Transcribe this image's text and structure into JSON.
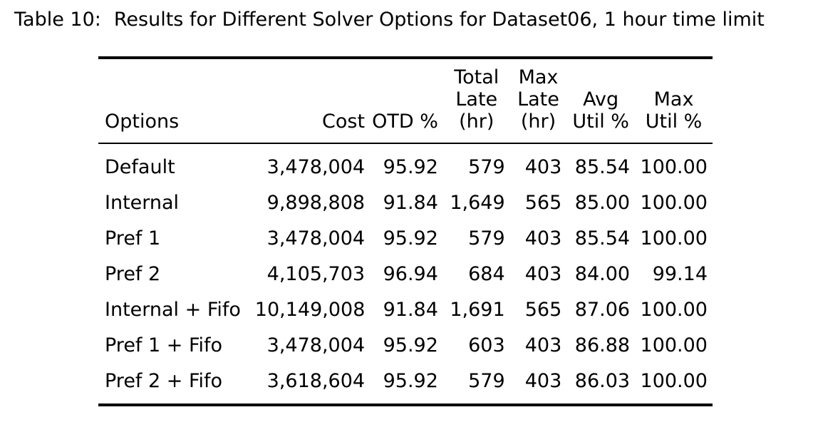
{
  "caption": {
    "label": "Table 10:",
    "text": "Results for Different Solver Options for Dataset06, 1 hour time limit"
  },
  "table": {
    "headers": [
      [
        "Options"
      ],
      [
        "Cost"
      ],
      [
        "OTD %"
      ],
      [
        "Total",
        "Late",
        "(hr)"
      ],
      [
        "Max",
        "Late",
        "(hr)"
      ],
      [
        "Avg",
        "Util %"
      ],
      [
        "Max",
        "Util %"
      ]
    ],
    "rows": [
      [
        "Default",
        "3,478,004",
        "95.92",
        "579",
        "403",
        "85.54",
        "100.00"
      ],
      [
        "Internal",
        "9,898,808",
        "91.84",
        "1,649",
        "565",
        "85.00",
        "100.00"
      ],
      [
        "Pref 1",
        "3,478,004",
        "95.92",
        "579",
        "403",
        "85.54",
        "100.00"
      ],
      [
        "Pref 2",
        "4,105,703",
        "96.94",
        "684",
        "403",
        "84.00",
        "99.14"
      ],
      [
        "Internal + Fifo",
        "10,149,008",
        "91.84",
        "1,691",
        "565",
        "87.06",
        "100.00"
      ],
      [
        "Pref 1 + Fifo",
        "3,478,004",
        "95.92",
        "603",
        "403",
        "86.88",
        "100.00"
      ],
      [
        "Pref 2 + Fifo",
        "3,618,604",
        "95.92",
        "579",
        "403",
        "86.03",
        "100.00"
      ]
    ]
  }
}
